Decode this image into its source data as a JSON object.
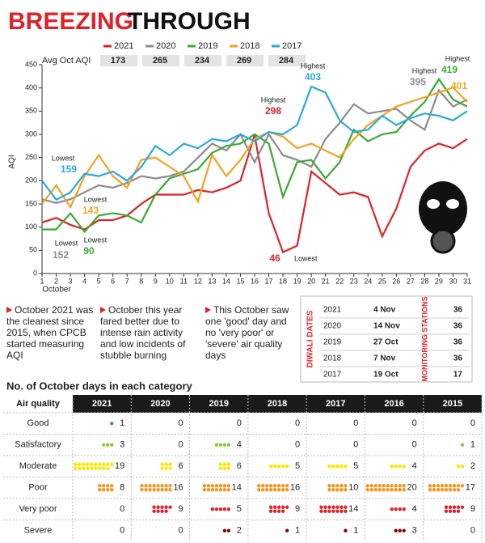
{
  "title": {
    "highlight": "BREEZING",
    "rest": "THROUGH"
  },
  "chart_data": {
    "type": "line",
    "y_label": "AQI",
    "x_label": "October",
    "avg_label": "Avg Oct AQI",
    "x": [
      1,
      2,
      3,
      4,
      5,
      6,
      7,
      8,
      9,
      10,
      11,
      12,
      13,
      14,
      15,
      16,
      17,
      18,
      19,
      20,
      21,
      22,
      23,
      24,
      25,
      26,
      27,
      28,
      29,
      30,
      31
    ],
    "xlim": [
      1,
      31
    ],
    "xticks": [
      1,
      2,
      3,
      4,
      5,
      6,
      7,
      8,
      9,
      10,
      11,
      12,
      13,
      14,
      15,
      16,
      17,
      18,
      19,
      20,
      21,
      22,
      23,
      24,
      25,
      26,
      27,
      28,
      29,
      30,
      31
    ],
    "ylim": [
      0,
      450
    ],
    "yticks": [
      0,
      50,
      100,
      150,
      200,
      250,
      300,
      350,
      400,
      450
    ],
    "series": [
      {
        "name": "2021",
        "color": "#e02127",
        "avg": 173,
        "values": [
          110,
          120,
          105,
          95,
          115,
          115,
          125,
          150,
          170,
          170,
          170,
          180,
          175,
          185,
          200,
          298,
          130,
          46,
          60,
          220,
          195,
          170,
          175,
          165,
          80,
          140,
          230,
          265,
          280,
          270,
          290
        ]
      },
      {
        "name": "2020",
        "color": "#8c8c8c",
        "avg": 265,
        "values": [
          160,
          152,
          160,
          175,
          190,
          185,
          195,
          210,
          205,
          210,
          220,
          250,
          280,
          265,
          300,
          240,
          300,
          255,
          245,
          230,
          290,
          325,
          365,
          345,
          350,
          355,
          330,
          310,
          395,
          360,
          375
        ]
      },
      {
        "name": "2019",
        "color": "#3aaa35",
        "avg": 234,
        "values": [
          95,
          95,
          130,
          90,
          125,
          130,
          125,
          110,
          170,
          205,
          215,
          225,
          260,
          275,
          280,
          300,
          280,
          165,
          240,
          245,
          205,
          240,
          310,
          285,
          300,
          305,
          340,
          370,
          419,
          375,
          360
        ]
      },
      {
        "name": "2018",
        "color": "#f5a21d",
        "avg": 269,
        "values": [
          150,
          190,
          143,
          210,
          255,
          210,
          185,
          245,
          250,
          230,
          210,
          155,
          255,
          210,
          245,
          290,
          305,
          295,
          270,
          280,
          265,
          250,
          290,
          320,
          340,
          360,
          370,
          380,
          390,
          401,
          370
        ]
      },
      {
        "name": "2017",
        "color": "#29a9e1",
        "avg": 284,
        "values": [
          200,
          159,
          175,
          215,
          210,
          220,
          200,
          230,
          275,
          255,
          280,
          270,
          290,
          285,
          300,
          285,
          305,
          300,
          320,
          403,
          390,
          330,
          305,
          310,
          340,
          320,
          335,
          345,
          340,
          330,
          350
        ]
      }
    ],
    "annotations": [
      {
        "label": "Lowest",
        "value": 159,
        "color": "#29a9e1"
      },
      {
        "label": "Lowest",
        "value": 143,
        "color": "#f5a21d"
      },
      {
        "label": "Lowest",
        "value": 152,
        "color": "#8c8c8c"
      },
      {
        "label": "Lowest",
        "value": 90,
        "color": "#3aaa35"
      },
      {
        "label": "Highest",
        "value": 298,
        "color": "#e02127"
      },
      {
        "label": "Lowest",
        "value": 46,
        "color": "#e02127"
      },
      {
        "label": "Highest",
        "value": 403,
        "color": "#29a9e1"
      },
      {
        "label": "Highest",
        "value": 395,
        "color": "#8c8c8c"
      },
      {
        "label": "Highest",
        "value": 419,
        "color": "#3aaa35"
      },
      {
        "value": 401,
        "color": "#f5a21d"
      }
    ]
  },
  "notes": [
    "October 2021 was the cleanest since 2015, when CPCB started measuring AQI",
    "October this year fared better due to intense rain activity and low incidents of stubble burning",
    "This October saw one 'good' day and no 'very poor' or 'severe' air quality days"
  ],
  "diwali": {
    "title": "DIWALI DATES",
    "stations_title": "MONITORING STATIONS",
    "rows": [
      [
        "2021",
        "4 Nov",
        "36"
      ],
      [
        "2020",
        "14 Nov",
        "36"
      ],
      [
        "2019",
        "27 Oct",
        "36"
      ],
      [
        "2018",
        "7 Nov",
        "36"
      ],
      [
        "2017",
        "19 Oct",
        "17"
      ]
    ]
  },
  "category_table": {
    "title": "No. of October days in each category",
    "header": [
      "Air quality",
      "2021",
      "2020",
      "2019",
      "2018",
      "2017",
      "2016",
      "2015"
    ],
    "rows": [
      {
        "name": "Good",
        "color": "#3aaa35",
        "counts": [
          1,
          0,
          0,
          0,
          0,
          0,
          0
        ]
      },
      {
        "name": "Satisfactory",
        "color": "#8cc63f",
        "counts": [
          3,
          0,
          4,
          0,
          0,
          0,
          1
        ]
      },
      {
        "name": "Moderate",
        "color": "#ffe600",
        "counts": [
          19,
          6,
          6,
          5,
          5,
          4,
          2
        ]
      },
      {
        "name": "Poor",
        "color": "#f7941d",
        "counts": [
          8,
          16,
          14,
          16,
          10,
          20,
          17
        ]
      },
      {
        "name": "Very poor",
        "color": "#e02127",
        "counts": [
          0,
          9,
          5,
          9,
          14,
          4,
          9
        ]
      },
      {
        "name": "Severe",
        "color": "#8b0000",
        "counts": [
          0,
          0,
          2,
          1,
          1,
          3,
          0
        ]
      }
    ]
  }
}
